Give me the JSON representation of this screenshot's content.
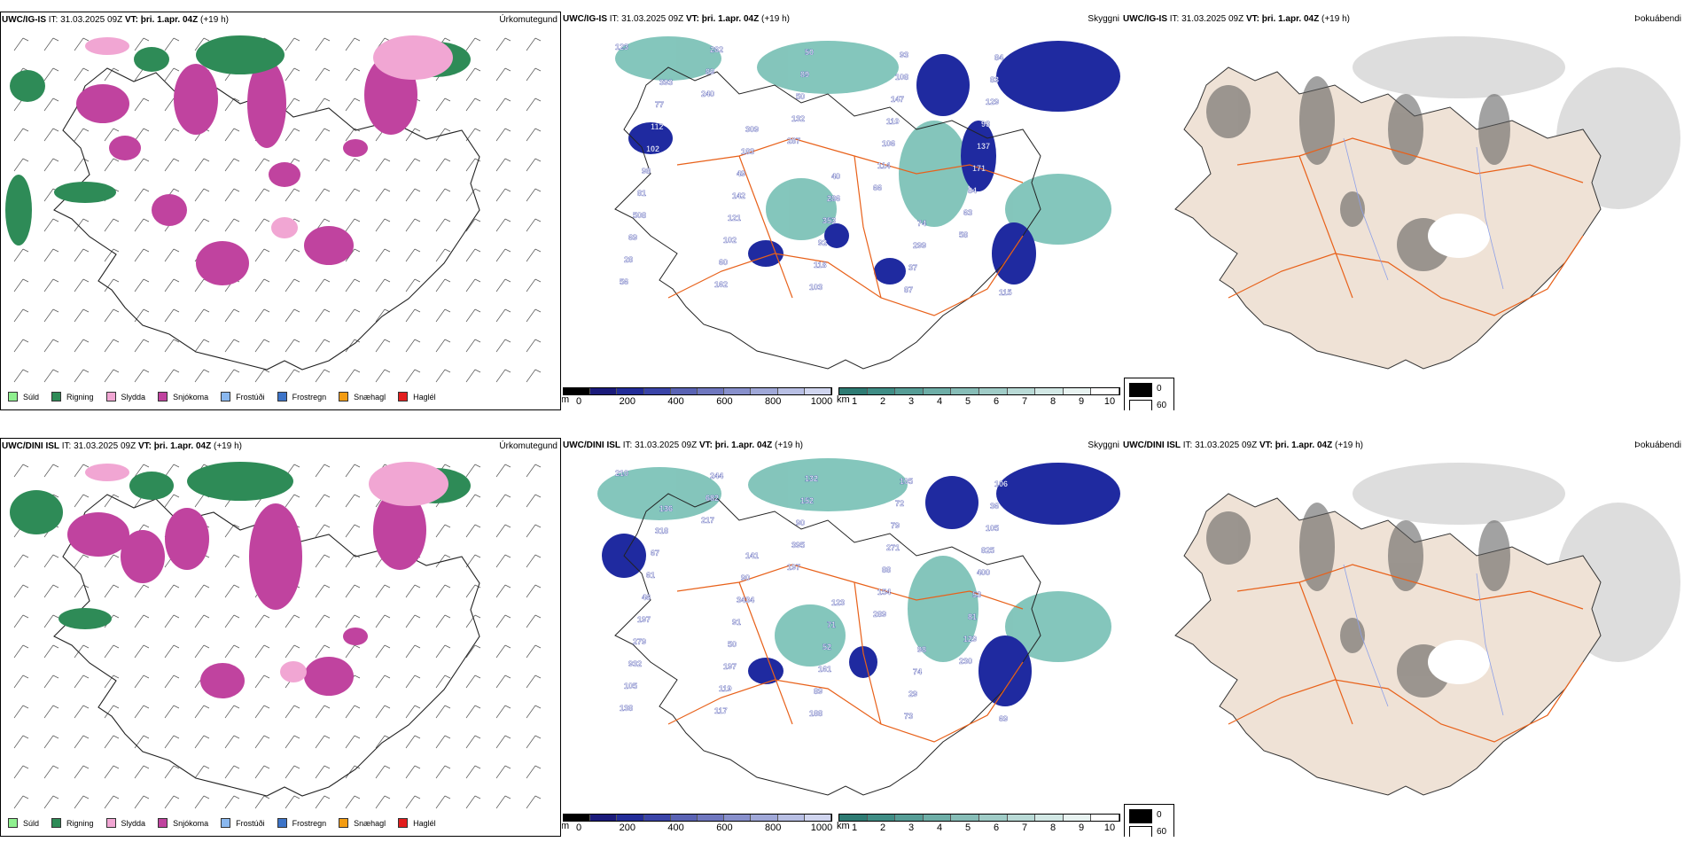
{
  "colors": {
    "sudd": "#8ff08f",
    "rigning": "#2e8b57",
    "slydda": "#f1a6d3",
    "snjokoma": "#c0439f",
    "frostudi": "#8ab8ef",
    "frostregn": "#3d74c8",
    "snaehagl": "#f39c12",
    "haglel": "#e21d1d",
    "land_fill": "#efe2d6",
    "roads": "#e8611a",
    "vis_low": "#1f2aa0",
    "cloud_teal": "#2e8b82"
  },
  "rows": [
    {
      "model": "UWC/IG-IS",
      "it_label": "IT:",
      "it_value": "31.03.2025 09Z",
      "vt_label": "VT:",
      "vt_value": "þri. 1.apr. 04Z",
      "lead": "(+19 h)",
      "titles": [
        "Úrkomutegund",
        "Skyggni",
        "Þokuábendi"
      ],
      "vis_labels": [
        "123",
        "240",
        "287",
        "66",
        "58",
        "56",
        "89",
        "132",
        "114",
        "63",
        "28",
        "262",
        "50",
        "106",
        "84",
        "69",
        "162",
        "89",
        "110",
        "171",
        "508",
        "60",
        "50",
        "147",
        "137",
        "81",
        "102",
        "103",
        "108",
        "93",
        "98",
        "121",
        "118",
        "93",
        "129",
        "102",
        "142",
        "92",
        "87",
        "83",
        "112",
        "49",
        "353",
        "37",
        "84",
        "77",
        "183",
        "286",
        "299",
        "115",
        "393",
        "309",
        "40",
        "74"
      ]
    },
    {
      "model": "UWC/DINI ISL",
      "it_label": "IT:",
      "it_value": "31.03.2025 09Z",
      "vt_label": "VT:",
      "vt_value": "þri. 1.apr. 04Z",
      "lead": "(+19 h)",
      "titles": [
        "Úrkomutegund",
        "Skyggni",
        "Þokuábendi"
      ],
      "vis_labels": [
        "210",
        "217",
        "197",
        "289",
        "230",
        "138",
        "682",
        "395",
        "154",
        "129",
        "105",
        "244",
        "90",
        "88",
        "81",
        "932",
        "117",
        "152",
        "271",
        "53",
        "279",
        "119",
        "132",
        "79",
        "400",
        "197",
        "197",
        "188",
        "72",
        "825",
        "46",
        "50",
        "89",
        "105",
        "105",
        "61",
        "91",
        "161",
        "73",
        "36",
        "67",
        "3434",
        "52",
        "29",
        "106",
        "318",
        "90",
        "71",
        "74",
        "69",
        "136",
        "141",
        "123",
        "98"
      ]
    }
  ],
  "legend": [
    {
      "label": "Súld",
      "color": "#8ff08f"
    },
    {
      "label": "Rigning",
      "color": "#2e8b57"
    },
    {
      "label": "Slydda",
      "color": "#f1a6d3"
    },
    {
      "label": "Snjókoma",
      "color": "#c0439f"
    },
    {
      "label": "Frostúði",
      "color": "#8ab8ef"
    },
    {
      "label": "Frostregn",
      "color": "#3d74c8"
    },
    {
      "label": "Snæhagl",
      "color": "#f39c12"
    },
    {
      "label": "Haglél",
      "color": "#e21d1d"
    }
  ],
  "ceiling_scale": {
    "unit": "m",
    "ticks": [
      "0",
      "200",
      "400",
      "600",
      "800",
      "1000"
    ]
  },
  "vis_scale": {
    "unit": "km",
    "ticks": [
      "1",
      "2",
      "3",
      "4",
      "5",
      "6",
      "7",
      "8",
      "9",
      "10"
    ]
  },
  "fog_scale": {
    "ticks": [
      "0",
      "60"
    ]
  }
}
